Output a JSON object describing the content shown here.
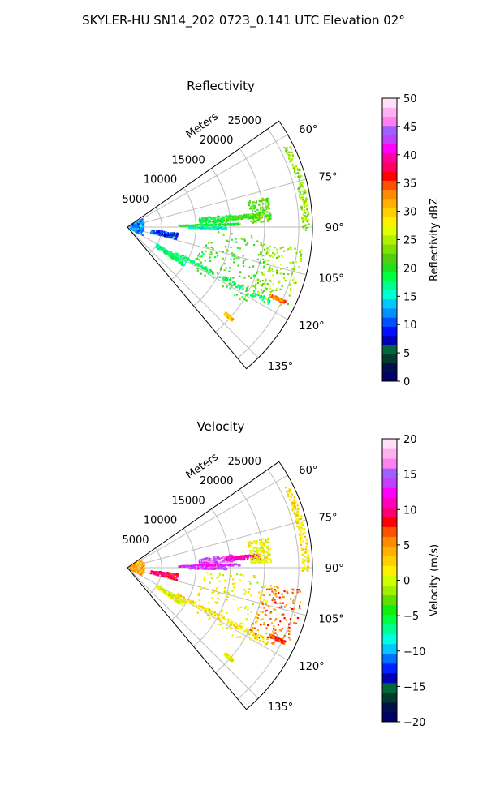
{
  "figure": {
    "suptitle": "SKYLER-HU  SN14_202  0723_0.141 UTC Elevation 02°"
  },
  "colors": {
    "ring": "#bdbdbd",
    "frame": "#000000",
    "reflectivity_cmap": [
      "#000066",
      "#00104d",
      "#003b2e",
      "#00663b",
      "#0000b3",
      "#0010ff",
      "#0050ff",
      "#0090ff",
      "#00c8ff",
      "#00ffd0",
      "#00ff90",
      "#00ff40",
      "#20e020",
      "#50d010",
      "#80e000",
      "#b0f000",
      "#e0ff00",
      "#fff000",
      "#ffd000",
      "#ffb000",
      "#ff8c00",
      "#ff5000",
      "#ff0000",
      "#ff0060",
      "#ff00a0",
      "#ff00ff",
      "#c040ff",
      "#a060ff",
      "#ff80f0",
      "#ffb0f0",
      "#ffe0f8"
    ],
    "velocity_cmap": [
      "#000066",
      "#00104d",
      "#003b2e",
      "#00663b",
      "#0000b3",
      "#0020ff",
      "#0070ff",
      "#00c8ff",
      "#00ffe0",
      "#00ff90",
      "#00ff40",
      "#10f010",
      "#60e000",
      "#a0f000",
      "#d0ff00",
      "#fff000",
      "#ffd000",
      "#ffb000",
      "#ff8c00",
      "#ff5000",
      "#ff0000",
      "#ff0070",
      "#ff00c0",
      "#ff00ff",
      "#c040ff",
      "#a060ff",
      "#ff80f0",
      "#ffb0f0",
      "#ffe0f8"
    ]
  },
  "chart_data": [
    {
      "type": "heatmap",
      "projection": "polar-sector",
      "title": "Reflectivity",
      "radial_label": "Meters",
      "radial_ticks": [
        5000,
        10000,
        15000,
        20000,
        25000
      ],
      "radial_tick_labels": [
        "5000",
        "10000",
        "15000",
        "20000",
        "25000"
      ],
      "r_range": [
        0,
        27000
      ],
      "angle_range_deg": [
        55,
        140
      ],
      "angle_ticks": [
        60,
        75,
        90,
        105,
        120,
        135
      ],
      "angle_tick_labels": [
        "60°",
        "75°",
        "90°",
        "105°",
        "120°",
        "135°"
      ],
      "colorbar": {
        "label": "Reflectivity dBZ",
        "range": [
          0,
          50
        ],
        "ticks": [
          "0",
          "5",
          "10",
          "15",
          "20",
          "25",
          "30",
          "35",
          "40",
          "45",
          "50"
        ]
      },
      "echo_features": [
        {
          "az": [
            83,
            87
          ],
          "r": [
            10500,
            15500
          ],
          "value": 19
        },
        {
          "az": [
            88,
            89
          ],
          "r": [
            7500,
            16500
          ],
          "value": 20
        },
        {
          "az": [
            84,
            86
          ],
          "r": [
            14500,
            19500
          ],
          "value": 21
        },
        {
          "az": [
            90,
            91
          ],
          "r": [
            9000,
            14500
          ],
          "value": 16
        },
        {
          "az": [
            63,
            91
          ],
          "r": [
            25500,
            26500
          ],
          "value": 24
        },
        {
          "az": [
            78,
            88
          ],
          "r": [
            18000,
            21000
          ],
          "value": 22
        },
        {
          "az": [
            93,
            123
          ],
          "r": [
            11000,
            21000
          ],
          "value": 21
        },
        {
          "az": [
            97,
            118
          ],
          "r": [
            20000,
            26000
          ],
          "value": 24
        },
        {
          "az": [
            117,
            119
          ],
          "r": [
            8000,
            23500
          ],
          "value": 18
        },
        {
          "az": [
            120,
            125
          ],
          "r": [
            5000,
            10000
          ],
          "value": 17
        },
        {
          "az": [
            60,
            120
          ],
          "r": [
            500,
            2500
          ],
          "value": 12
        },
        {
          "az": [
            97,
            104
          ],
          "r": [
            3500,
            7500
          ],
          "value": 9
        },
        {
          "az": [
            131,
            132
          ],
          "r": [
            19000,
            20500
          ],
          "value": 30
        },
        {
          "az": [
            115,
            116
          ],
          "r": [
            23000,
            25500
          ],
          "value": 33
        }
      ]
    },
    {
      "type": "heatmap",
      "projection": "polar-sector",
      "title": "Velocity",
      "radial_label": "Meters",
      "radial_ticks": [
        5000,
        10000,
        15000,
        20000,
        25000
      ],
      "radial_tick_labels": [
        "5000",
        "10000",
        "15000",
        "20000",
        "25000"
      ],
      "r_range": [
        0,
        27000
      ],
      "angle_range_deg": [
        55,
        140
      ],
      "angle_ticks": [
        60,
        75,
        90,
        105,
        120,
        135
      ],
      "angle_tick_labels": [
        "60°",
        "75°",
        "90°",
        "105°",
        "120°",
        "135°"
      ],
      "colorbar": {
        "label": "Velocity (m/s)",
        "range": [
          -20,
          20
        ],
        "ticks": [
          "−20",
          "−15",
          "−10",
          "−5",
          "0",
          "5",
          "10",
          "15",
          "20"
        ]
      },
      "echo_features": [
        {
          "az": [
            83,
            87
          ],
          "r": [
            10500,
            15500
          ],
          "value": 15
        },
        {
          "az": [
            88,
            89
          ],
          "r": [
            7500,
            16500
          ],
          "value": 13
        },
        {
          "az": [
            84,
            86
          ],
          "r": [
            14500,
            19500
          ],
          "value": 11
        },
        {
          "az": [
            90,
            91
          ],
          "r": [
            9000,
            14500
          ],
          "value": 14
        },
        {
          "az": [
            63,
            91
          ],
          "r": [
            25500,
            26500
          ],
          "value": 2
        },
        {
          "az": [
            78,
            88
          ],
          "r": [
            18000,
            21000
          ],
          "value": 1
        },
        {
          "az": [
            93,
            123
          ],
          "r": [
            11000,
            21000
          ],
          "value": 1
        },
        {
          "az": [
            97,
            118
          ],
          "r": [
            20000,
            26000
          ],
          "value": 6
        },
        {
          "az": [
            117,
            119
          ],
          "r": [
            8000,
            23500
          ],
          "value": 2
        },
        {
          "az": [
            120,
            125
          ],
          "r": [
            5000,
            10000
          ],
          "value": 1
        },
        {
          "az": [
            60,
            120
          ],
          "r": [
            500,
            2500
          ],
          "value": 4
        },
        {
          "az": [
            97,
            104
          ],
          "r": [
            3500,
            7500
          ],
          "value": 9
        },
        {
          "az": [
            131,
            132
          ],
          "r": [
            19000,
            20500
          ],
          "value": 1
        },
        {
          "az": [
            115,
            116
          ],
          "r": [
            23000,
            25500
          ],
          "value": 7
        }
      ]
    }
  ]
}
